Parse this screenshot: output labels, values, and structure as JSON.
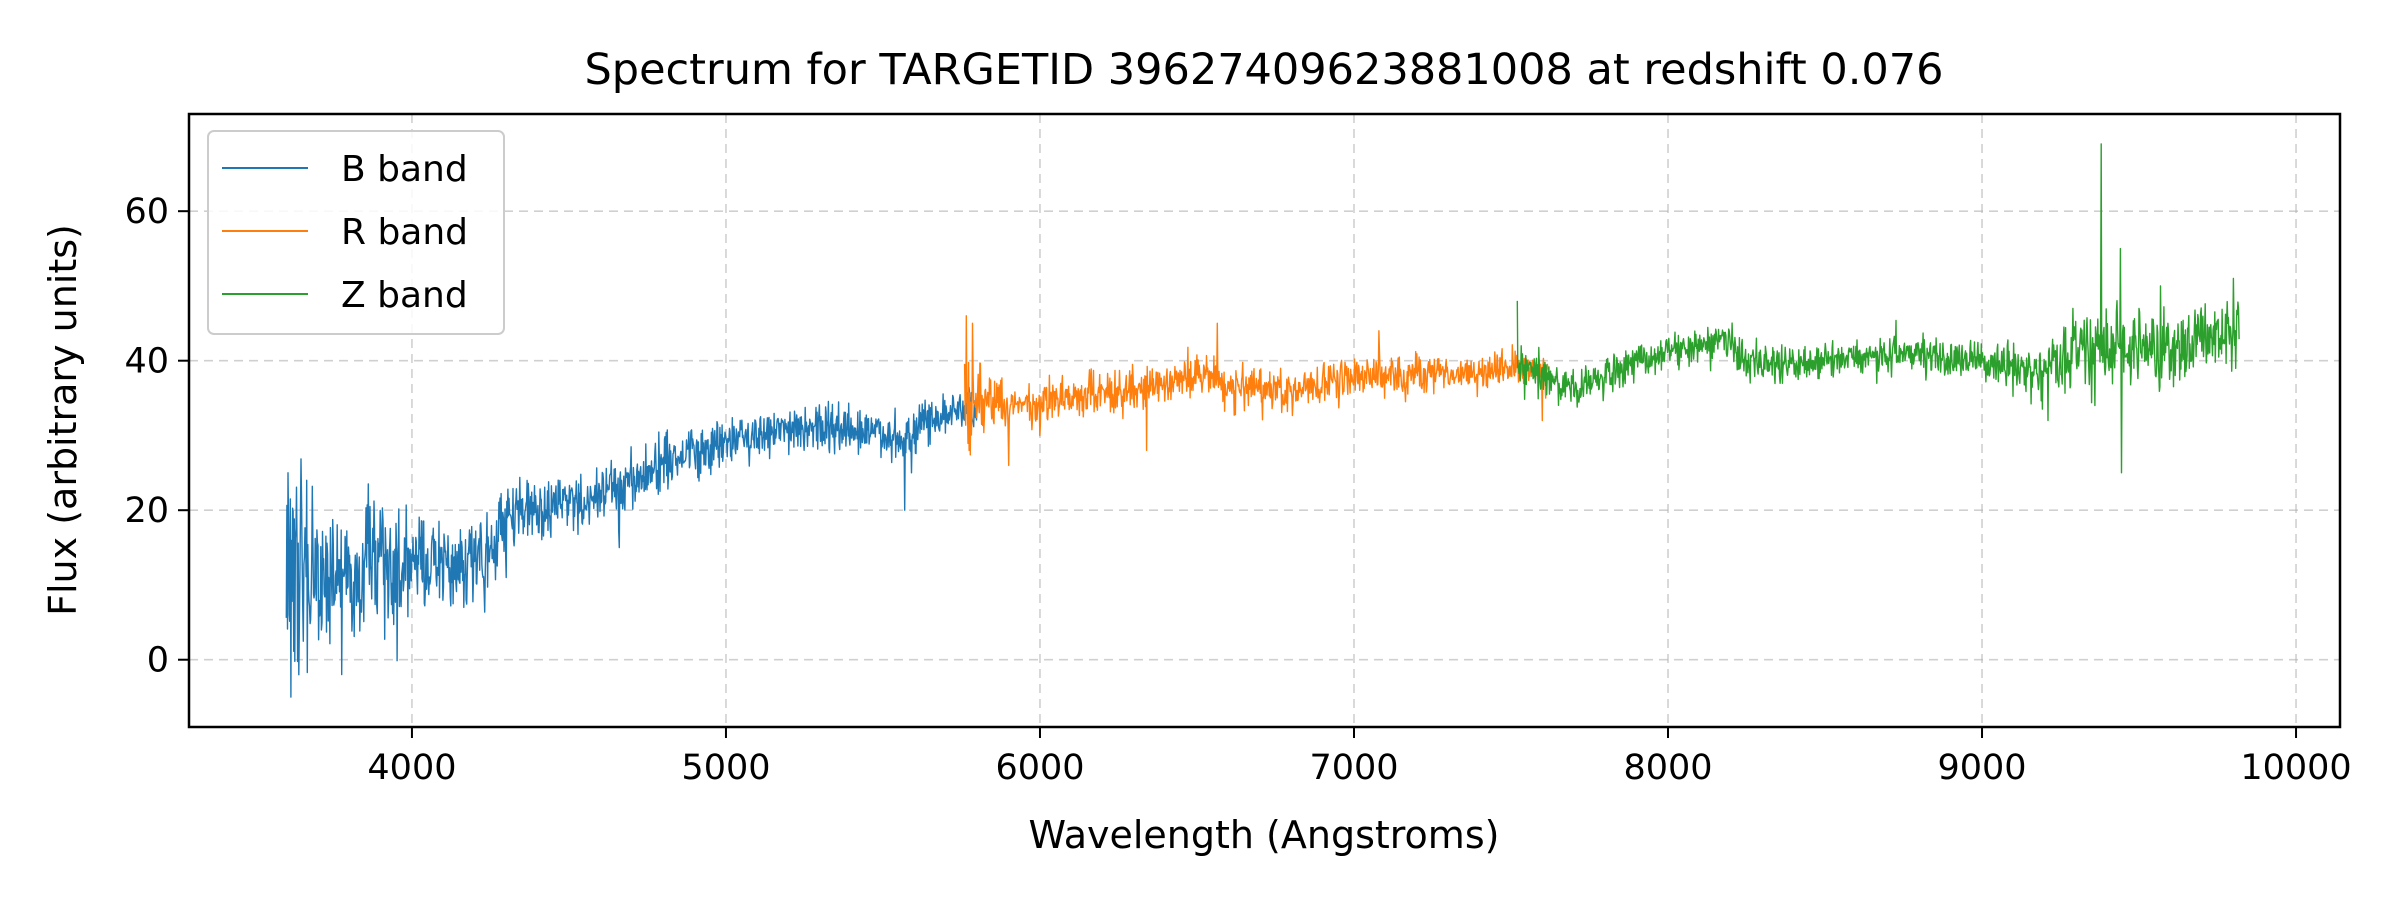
{
  "chart_data": {
    "type": "line",
    "title": "Spectrum for TARGETID 39627409623881008 at redshift 0.076",
    "xlabel": "Wavelength (Angstroms)",
    "ylabel": "Flux (arbitrary units)",
    "xlim": [
      3290,
      10140
    ],
    "ylim": [
      -9,
      73
    ],
    "x_ticks": [
      4000,
      5000,
      6000,
      7000,
      8000,
      9000,
      10000
    ],
    "y_ticks": [
      0,
      20,
      40,
      60
    ],
    "grid": true,
    "grid_style": "dashed",
    "legend_position": "top-left",
    "series": [
      {
        "name": "B band",
        "color": "#1f77b4",
        "x_range": [
          3600,
          5800
        ],
        "anchors": [
          [
            3600,
            12
          ],
          [
            3700,
            11
          ],
          [
            3800,
            12
          ],
          [
            3900,
            13
          ],
          [
            4000,
            13
          ],
          [
            4100,
            12
          ],
          [
            4200,
            13
          ],
          [
            4250,
            14
          ],
          [
            4300,
            19
          ],
          [
            4400,
            20
          ],
          [
            4500,
            21
          ],
          [
            4600,
            22
          ],
          [
            4700,
            24
          ],
          [
            4800,
            26
          ],
          [
            4900,
            28
          ],
          [
            5000,
            29
          ],
          [
            5100,
            30
          ],
          [
            5200,
            31
          ],
          [
            5300,
            31
          ],
          [
            5400,
            31
          ],
          [
            5500,
            30
          ],
          [
            5550,
            29
          ],
          [
            5600,
            31
          ],
          [
            5700,
            33
          ],
          [
            5800,
            34
          ]
        ],
        "noise": [
          [
            3600,
            7
          ],
          [
            3800,
            5
          ],
          [
            4000,
            3.5
          ],
          [
            4300,
            2.5
          ],
          [
            4600,
            2
          ],
          [
            5000,
            1.5
          ],
          [
            5800,
            1.5
          ]
        ],
        "features": [
          [
            3615,
            -5
          ],
          [
            3605,
            25
          ],
          [
            3665,
            24
          ],
          [
            3640,
            -2
          ],
          [
            4300,
            11
          ],
          [
            4660,
            15
          ],
          [
            5570,
            20
          ],
          [
            5590,
            25
          ]
        ]
      },
      {
        "name": "R band",
        "color": "#ff7f0e",
        "x_range": [
          5760,
          7620
        ],
        "anchors": [
          [
            5760,
            35
          ],
          [
            5800,
            35
          ],
          [
            5900,
            34
          ],
          [
            6000,
            34
          ],
          [
            6100,
            35
          ],
          [
            6200,
            36
          ],
          [
            6300,
            36
          ],
          [
            6400,
            37
          ],
          [
            6500,
            38
          ],
          [
            6600,
            37
          ],
          [
            6700,
            36
          ],
          [
            6800,
            36
          ],
          [
            6900,
            37
          ],
          [
            7000,
            38
          ],
          [
            7100,
            38
          ],
          [
            7200,
            38
          ],
          [
            7300,
            38
          ],
          [
            7400,
            39
          ],
          [
            7500,
            39
          ],
          [
            7620,
            39
          ]
        ],
        "noise": [
          [
            5760,
            3
          ],
          [
            5900,
            1.5
          ],
          [
            7620,
            1.2
          ]
        ],
        "features": [
          [
            5765,
            46
          ],
          [
            5785,
            45
          ],
          [
            5775,
            28
          ],
          [
            5900,
            26
          ],
          [
            6340,
            28
          ],
          [
            6565,
            45
          ],
          [
            7080,
            44
          ],
          [
            7600,
            32
          ],
          [
            7610,
            35
          ]
        ]
      },
      {
        "name": "Z band",
        "color": "#2ca02c",
        "x_range": [
          7520,
          9820
        ],
        "anchors": [
          [
            7520,
            40
          ],
          [
            7600,
            38
          ],
          [
            7700,
            36
          ],
          [
            7800,
            38
          ],
          [
            7900,
            40
          ],
          [
            8000,
            41
          ],
          [
            8100,
            42
          ],
          [
            8170,
            43
          ],
          [
            8250,
            40
          ],
          [
            8400,
            39
          ],
          [
            8500,
            40
          ],
          [
            8600,
            40
          ],
          [
            8700,
            41
          ],
          [
            8800,
            41
          ],
          [
            8900,
            40
          ],
          [
            9000,
            40
          ],
          [
            9100,
            39
          ],
          [
            9150,
            38
          ],
          [
            9200,
            39
          ],
          [
            9300,
            41
          ],
          [
            9400,
            42
          ],
          [
            9500,
            42
          ],
          [
            9600,
            42
          ],
          [
            9700,
            43
          ],
          [
            9820,
            44
          ]
        ],
        "noise": [
          [
            7520,
            1.2
          ],
          [
            9000,
            1.2
          ],
          [
            9300,
            2.5
          ],
          [
            9820,
            2.5
          ]
        ],
        "features": [
          [
            7520,
            48
          ],
          [
            9210,
            32
          ],
          [
            9290,
            47
          ],
          [
            9380,
            69
          ],
          [
            9440,
            55
          ],
          [
            9445,
            25
          ],
          [
            9360,
            34
          ],
          [
            9500,
            47
          ],
          [
            9800,
            51
          ]
        ]
      }
    ]
  }
}
